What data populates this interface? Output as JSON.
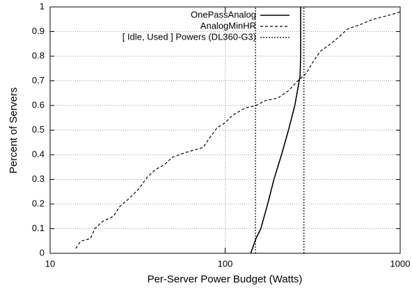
{
  "chart_data": {
    "type": "line",
    "xlabel": "Per-Server Power Budget (Watts)",
    "ylabel": "Percent of Servers",
    "xscale": "log",
    "xlim": [
      10,
      1000
    ],
    "xticks": [
      10,
      100,
      1000
    ],
    "ylim": [
      0,
      1
    ],
    "yticks": [
      0,
      0.1,
      0.2,
      0.3,
      0.4,
      0.5,
      0.6,
      0.7,
      0.8,
      0.9,
      1
    ],
    "grid": true,
    "legend": "upper right",
    "series": [
      {
        "name": "OnePassAnalog",
        "color": "#000000",
        "dash": "solid",
        "x": [
          140,
          150,
          160,
          175,
          190,
          210,
          230,
          250,
          262,
          268,
          270,
          270
        ],
        "values": [
          0,
          0.06,
          0.1,
          0.2,
          0.3,
          0.4,
          0.5,
          0.6,
          0.68,
          0.72,
          0.8,
          1
        ]
      },
      {
        "name": "AnalogMinHR",
        "color": "#000000",
        "dash": "dashed",
        "x": [
          14,
          15,
          17,
          18,
          20,
          23,
          25,
          28,
          32,
          36,
          40,
          45,
          50,
          60,
          75,
          80,
          90,
          100,
          110,
          130,
          150,
          170,
          200,
          230,
          260,
          290,
          320,
          350,
          400,
          450,
          500,
          600,
          700,
          900,
          1000
        ],
        "values": [
          0.02,
          0.05,
          0.06,
          0.1,
          0.13,
          0.15,
          0.19,
          0.22,
          0.26,
          0.31,
          0.34,
          0.36,
          0.39,
          0.41,
          0.43,
          0.46,
          0.51,
          0.53,
          0.56,
          0.59,
          0.6,
          0.62,
          0.63,
          0.66,
          0.7,
          0.73,
          0.78,
          0.82,
          0.85,
          0.88,
          0.91,
          0.93,
          0.95,
          0.97,
          0.98
        ]
      },
      {
        "name": "[ Idle, Used ] Powers (DL360-G3)",
        "color": "#000000",
        "dash": "dotted",
        "x": [
          149,
          149,
          null,
          282,
          282
        ],
        "values": [
          0,
          1,
          null,
          0,
          1
        ]
      }
    ]
  }
}
